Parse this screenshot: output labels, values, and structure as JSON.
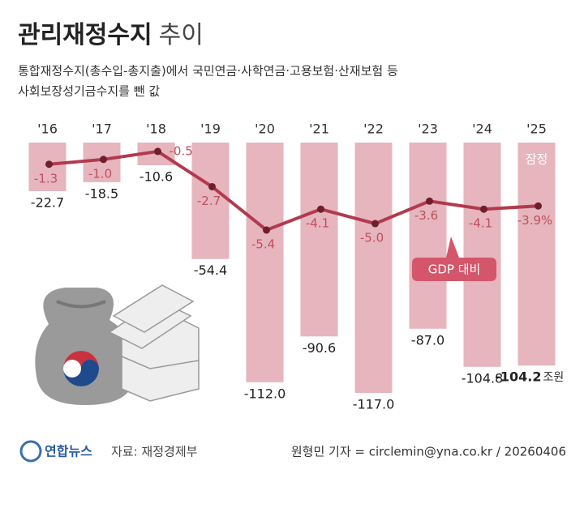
{
  "chart_data": {
    "type": "bar",
    "title": [
      "관리재정수지",
      "추이"
    ],
    "subtitle": [
      "통합재정수지(총수입-총지출)에서 국민연금·사학연금·고용보험·산재보험 등",
      "사회보장성기금수지를 뺀 값"
    ],
    "categories": [
      "'16",
      "'17",
      "'18",
      "'19",
      "'20",
      "'21",
      "'22",
      "'23",
      "'24",
      "'25"
    ],
    "unit": "조원",
    "annotation": "잠정",
    "series": [
      {
        "type": "bar",
        "color": "#e6b5bd",
        "values": [
          -22.7,
          -18.5,
          -10.6,
          -54.4,
          -112.0,
          -90.6,
          -117.0,
          -87.0,
          -104.8,
          -104.2
        ],
        "value_labels": [
          "-22.7",
          "-18.5",
          "-10.6",
          "-54.4",
          "-112.0",
          "-90.6",
          "-117.0",
          "-87.0",
          "-104.8",
          "-104.2"
        ]
      },
      {
        "type": "line",
        "name": "GDP 대비",
        "color": "#b23a4e",
        "axis": "y2",
        "values": [
          -1.3,
          -1.0,
          -0.5,
          -2.7,
          -5.4,
          -4.1,
          -5.0,
          -3.6,
          -4.1,
          -3.9
        ],
        "value_labels": [
          "-1.3",
          "-1.0",
          "-0.5",
          "-2.7",
          "-5.4",
          "-4.1",
          "-5.0",
          "-3.6",
          "-4.1",
          "-3.9%"
        ]
      }
    ],
    "ylim": [
      -117,
      0
    ],
    "y2lim": [
      -15.6,
      0
    ],
    "source": "자료: 재정경제부",
    "logo": "연합뉴스",
    "credit": "원형민 기자 = circlemin@yna.co.kr / 20260406"
  }
}
